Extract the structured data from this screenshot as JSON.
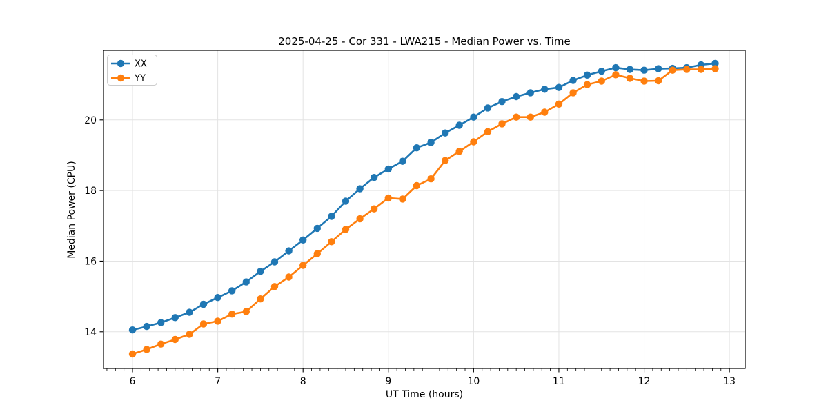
{
  "page": {
    "background": "#ffffff"
  },
  "chart_data": {
    "type": "line",
    "title": "2025-04-25 - Cor 331 - LWA215 - Median Power vs. Time",
    "xlabel": "UT Time (hours)",
    "ylabel": "Median Power (CPU)",
    "xlim": [
      5.66,
      13.185
    ],
    "ylim": [
      12.96,
      21.97
    ],
    "xticks": [
      6,
      7,
      8,
      9,
      10,
      11,
      12,
      13
    ],
    "yticks": [
      14,
      16,
      18,
      20
    ],
    "x_minor_step": 0.1,
    "grid": true,
    "legend_position": "upper-left",
    "x": [
      6,
      6.167,
      6.333,
      6.5,
      6.667,
      6.833,
      7,
      7.167,
      7.333,
      7.5,
      7.667,
      7.833,
      8,
      8.167,
      8.333,
      8.5,
      8.667,
      8.833,
      9,
      9.167,
      9.333,
      9.5,
      9.667,
      9.833,
      10,
      10.167,
      10.333,
      10.5,
      10.667,
      10.833,
      11,
      11.167,
      11.333,
      11.5,
      11.667,
      11.833,
      12,
      12.167,
      12.333,
      12.5,
      12.667,
      12.833
    ],
    "series": [
      {
        "name": "XX",
        "color": "#1f77b4",
        "values": [
          14.05,
          14.15,
          14.26,
          14.4,
          14.55,
          14.78,
          14.97,
          15.16,
          15.41,
          15.71,
          15.98,
          16.29,
          16.6,
          16.93,
          17.27,
          17.7,
          18.05,
          18.37,
          18.61,
          18.83,
          19.21,
          19.36,
          19.63,
          19.85,
          20.08,
          20.34,
          20.52,
          20.66,
          20.77,
          20.87,
          20.92,
          21.12,
          21.27,
          21.38,
          21.48,
          21.43,
          21.41,
          21.45,
          21.46,
          21.48,
          21.56,
          21.6
        ]
      },
      {
        "name": "YY",
        "color": "#ff7f0e",
        "values": [
          13.37,
          13.5,
          13.65,
          13.78,
          13.93,
          14.22,
          14.3,
          14.5,
          14.57,
          14.93,
          15.28,
          15.55,
          15.88,
          16.21,
          16.55,
          16.9,
          17.2,
          17.48,
          17.79,
          17.76,
          18.14,
          18.33,
          18.85,
          19.11,
          19.38,
          19.67,
          19.89,
          20.08,
          20.08,
          20.22,
          20.45,
          20.77,
          21.0,
          21.1,
          21.28,
          21.18,
          21.1,
          21.11,
          21.41,
          21.43,
          21.43,
          21.45
        ]
      }
    ],
    "styles": {
      "grid_color": "#e3e3e3",
      "axis_color": "#000000",
      "text_color": "#000000",
      "legend_border": "#cccccc",
      "legend_bg": "#ffffff",
      "marker_radius": 5.2,
      "line_width": 2.6
    }
  }
}
